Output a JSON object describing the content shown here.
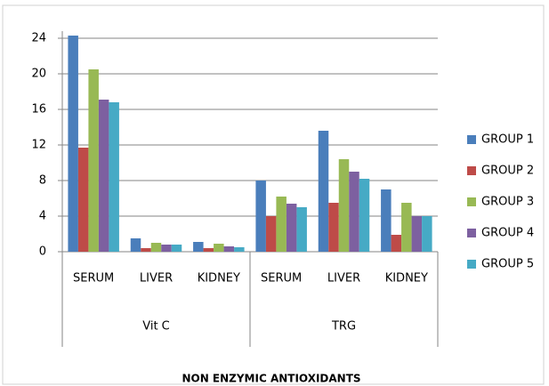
{
  "chart_data": {
    "type": "bar",
    "x_label": "NON  ENZYMIC   ANTIOXIDANTS",
    "groups": [
      {
        "name": "Vit C",
        "categories": [
          "SERUM",
          "LIVER",
          "KIDNEY"
        ]
      },
      {
        "name": "TRG",
        "categories": [
          "SERUM",
          "LIVER",
          "KIDNEY"
        ]
      }
    ],
    "series": [
      {
        "name": "GROUP 1",
        "color": "#4a7ebb",
        "values": [
          24.3,
          1.5,
          1.1,
          8.0,
          13.6,
          7.0
        ]
      },
      {
        "name": "GROUP 2",
        "color": "#be4b48",
        "values": [
          11.7,
          0.4,
          0.4,
          4.0,
          5.5,
          1.9
        ]
      },
      {
        "name": "GROUP 3",
        "color": "#98b954",
        "values": [
          20.5,
          1.0,
          0.9,
          6.2,
          10.4,
          5.5
        ]
      },
      {
        "name": "GROUP 4",
        "color": "#7d60a0",
        "values": [
          17.1,
          0.8,
          0.6,
          5.4,
          9.0,
          4.0
        ]
      },
      {
        "name": "GROUP 5",
        "color": "#46aac5",
        "values": [
          16.8,
          0.8,
          0.5,
          5.0,
          8.2,
          4.0
        ]
      }
    ],
    "ylim": [
      0,
      24
    ],
    "yticks": [
      0,
      4,
      8,
      12,
      16,
      20,
      24
    ],
    "grid": true,
    "legend": "right"
  }
}
